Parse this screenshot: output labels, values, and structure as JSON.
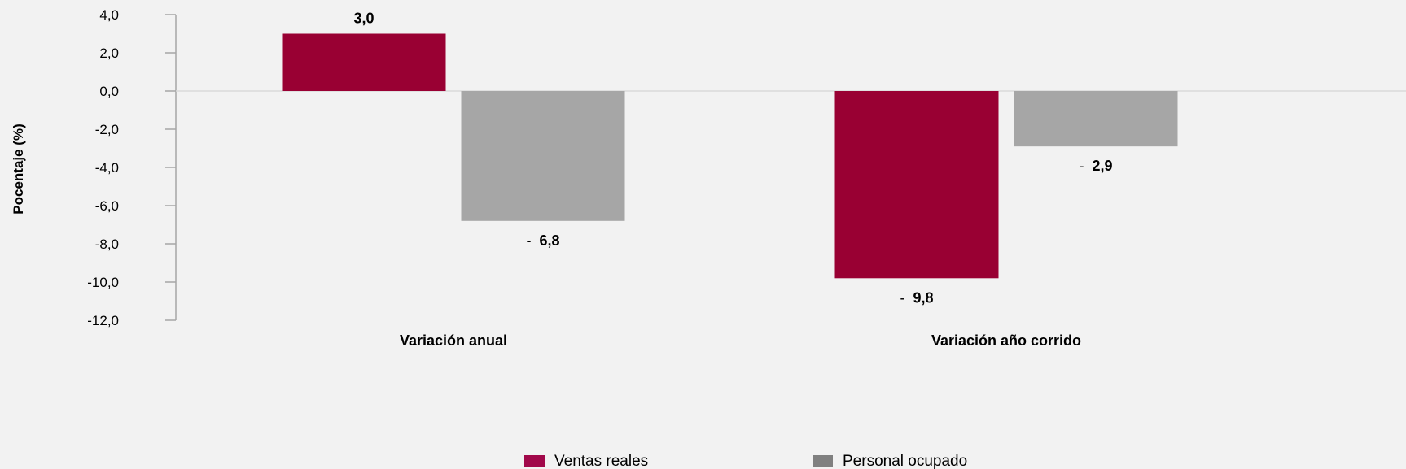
{
  "chart_data": {
    "type": "bar",
    "categories": [
      "Variación anual",
      "Variación año corrido"
    ],
    "series": [
      {
        "name": "Ventas reales",
        "values": [
          3.0,
          -9.8
        ],
        "labels": [
          "3,0",
          "- 9,8"
        ],
        "color": "#990033",
        "legend_color": "#a1084a"
      },
      {
        "name": "Personal ocupado",
        "values": [
          -6.8,
          -2.9
        ],
        "labels": [
          "- 6,8",
          "- 2,9"
        ],
        "color": "#a6a6a6",
        "legend_color": "#808080"
      }
    ],
    "ylabel": "Pocentaje (%)",
    "ylim": [
      -12,
      4
    ],
    "yticks": [
      4,
      2,
      0,
      -2,
      -4,
      -6,
      -8,
      -10,
      -12
    ],
    "ytick_labels": [
      "4,0",
      "2,0",
      "0,0",
      "-2,0",
      "-4,0",
      "-6,0",
      "-8,0",
      "-10,0",
      "-12,0"
    ],
    "legend_position": "bottom",
    "grid": false
  }
}
